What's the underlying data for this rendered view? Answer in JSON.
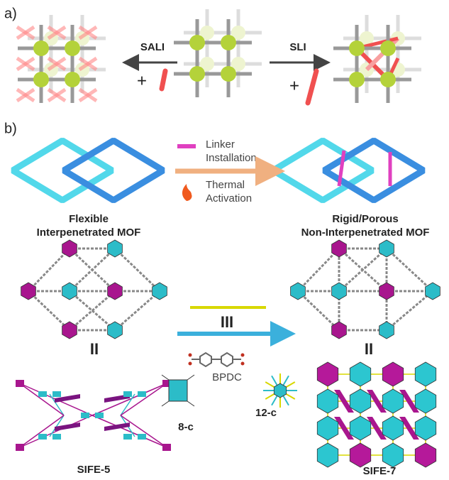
{
  "panel_a": {
    "label": "a)",
    "sali": "SALI",
    "sli": "SLI",
    "plus_left": "+",
    "plus_right": "+"
  },
  "panel_b": {
    "label": "b)",
    "step_1": [
      "Linker",
      "Installation"
    ],
    "step_2": [
      "Thermal",
      "Activation"
    ],
    "left_caption": [
      "Flexible",
      "Interpenetrated MOF"
    ],
    "right_caption": [
      "Rigid/Porous",
      "Non-Interpenetrated MOF"
    ],
    "left_symbol": "II",
    "linker_symbol": "III",
    "linker_name": "BPDC",
    "right_symbol": "II",
    "node_left": "8-c",
    "node_right": "12-c",
    "left_name": "SIFE-5",
    "right_name": "SIFE-7"
  }
}
